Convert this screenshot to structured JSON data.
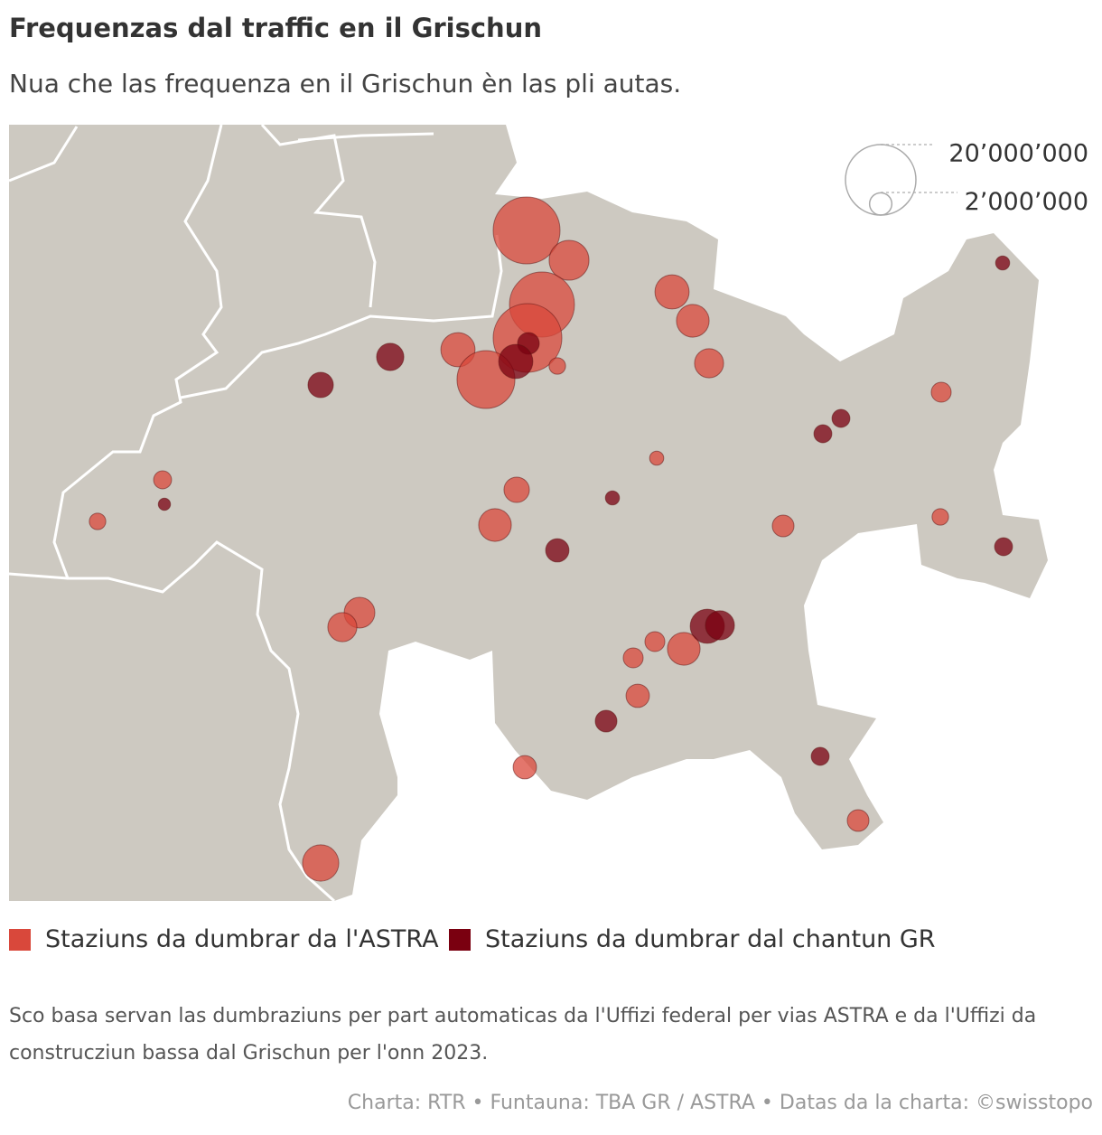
{
  "chart_data": {
    "type": "bubble-map",
    "title": "Frequenzas dal traffic en il Grischun",
    "subtitle": "Nua che las frequenza en il Grischun èn las pli autas.",
    "size_ticks": [
      {
        "value": 20000000,
        "label": "20’000’000"
      },
      {
        "value": 2000000,
        "label": "2’000’000"
      }
    ],
    "series": [
      {
        "name": "Staziuns da dumbrar da l'ASTRA",
        "color": "#d9483b",
        "values": [
          18000000,
          6400000,
          17000000,
          19000000,
          4700000,
          13500000,
          1100000,
          4700000,
          4300000,
          3400000,
          1600000,
          800000,
          2600000,
          4300000,
          1900000,
          1100000,
          1300000,
          1100000,
          3800000,
          3400000,
          4300000,
          1600000,
          1600000,
          2200000,
          2200000,
          1900000,
          5300000
        ]
      },
      {
        "name": "Staziuns da dumbrar dal chantun GR",
        "color": "#7a0010",
        "values": [
          1900000,
          4700000,
          3000000,
          2600000,
          1300000,
          1300000,
          800000,
          800000,
          2200000,
          600000,
          1300000,
          4700000,
          3400000,
          1900000,
          1300000
        ]
      }
    ],
    "note": "Sco basa servan las dumbraziuns per part automaticas da l'Uffizi federal per vias ASTRA e da l'Uffizi da construcziun bassa dal Grischun per l'onn 2023.",
    "source": "Charta: RTR • Funtauna: TBA GR / ASTRA • Datas da la charta: ©swisstopo"
  }
}
